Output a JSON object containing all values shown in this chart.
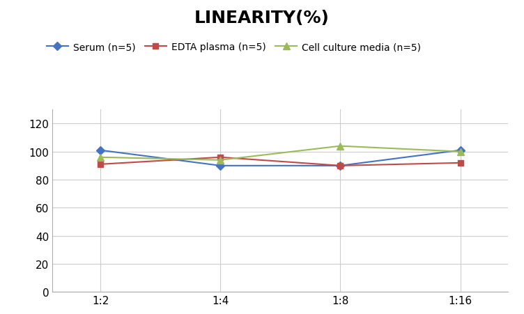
{
  "title": "LINEARITY(%)",
  "x_labels": [
    "1:2",
    "1:4",
    "1:8",
    "1:16"
  ],
  "x_positions": [
    0,
    1,
    2,
    3
  ],
  "series": [
    {
      "label": "Serum (n=5)",
      "values": [
        101,
        90,
        90,
        101
      ],
      "color": "#4472C4",
      "marker": "D",
      "markersize": 6
    },
    {
      "label": "EDTA plasma (n=5)",
      "values": [
        91,
        96,
        90,
        92
      ],
      "color": "#BE4B48",
      "marker": "s",
      "markersize": 6
    },
    {
      "label": "Cell culture media (n=5)",
      "values": [
        96,
        94,
        104,
        100
      ],
      "color": "#9BBB59",
      "marker": "^",
      "markersize": 7
    }
  ],
  "ylim": [
    0,
    130
  ],
  "yticks": [
    0,
    20,
    40,
    60,
    80,
    100,
    120
  ],
  "background_color": "#FFFFFF",
  "grid_color": "#CCCCCC",
  "title_fontsize": 18,
  "legend_fontsize": 10,
  "tick_fontsize": 11
}
